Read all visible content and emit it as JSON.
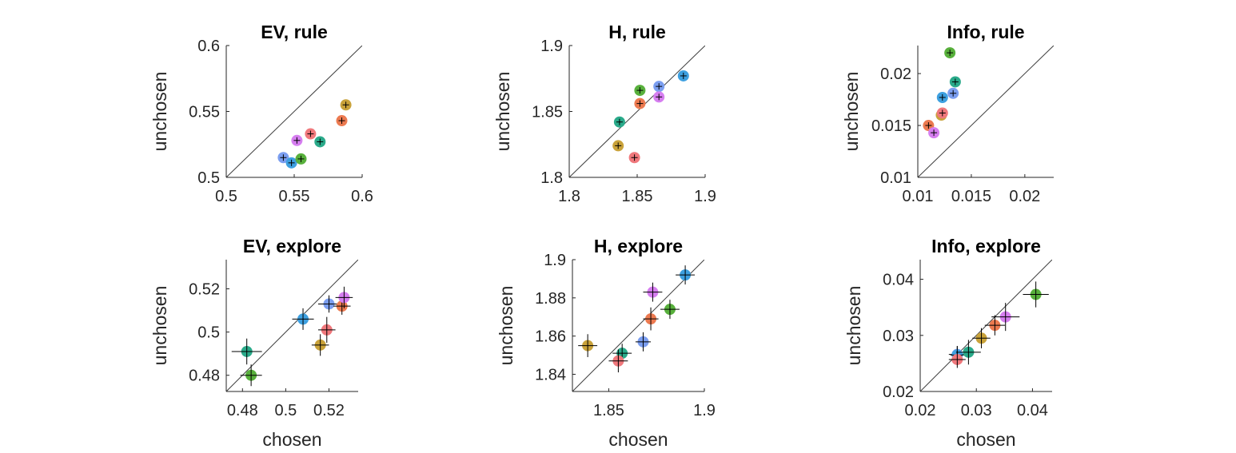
{
  "colors": [
    "#7b9ef0",
    "#3ea0e0",
    "#58b03c",
    "#2aaa8a",
    "#c9a23a",
    "#ec7a50",
    "#f0787c",
    "#d67ef0"
  ],
  "chart_data": [
    {
      "type": "scatter",
      "title": "EV, rule",
      "xlabel": "",
      "ylabel": "unchosen",
      "xlim": [
        0.5,
        0.6
      ],
      "ylim": [
        0.5,
        0.6
      ],
      "xticks": [
        0.5,
        0.55,
        0.6
      ],
      "yticks": [
        0.5,
        0.55,
        0.6
      ],
      "xticklabels": [
        "0.5",
        "0.55",
        "0.6"
      ],
      "yticklabels": [
        "0.5",
        "0.55",
        "0.6"
      ],
      "points": [
        {
          "x": 0.542,
          "y": 0.515,
          "xerr": 0.001,
          "yerr": 0.001,
          "color": 0
        },
        {
          "x": 0.548,
          "y": 0.511,
          "xerr": 0.001,
          "yerr": 0.001,
          "color": 1
        },
        {
          "x": 0.555,
          "y": 0.514,
          "xerr": 0.001,
          "yerr": 0.001,
          "color": 2
        },
        {
          "x": 0.569,
          "y": 0.527,
          "xerr": 0.001,
          "yerr": 0.001,
          "color": 3
        },
        {
          "x": 0.588,
          "y": 0.555,
          "xerr": 0.001,
          "yerr": 0.001,
          "color": 4
        },
        {
          "x": 0.585,
          "y": 0.543,
          "xerr": 0.001,
          "yerr": 0.001,
          "color": 5
        },
        {
          "x": 0.562,
          "y": 0.533,
          "xerr": 0.001,
          "yerr": 0.001,
          "color": 6
        },
        {
          "x": 0.552,
          "y": 0.528,
          "xerr": 0.001,
          "yerr": 0.001,
          "color": 7
        }
      ]
    },
    {
      "type": "scatter",
      "title": "H, rule",
      "xlabel": "",
      "ylabel": "unchosen",
      "xlim": [
        1.8,
        1.9
      ],
      "ylim": [
        1.8,
        1.9
      ],
      "xticks": [
        1.8,
        1.85,
        1.9
      ],
      "yticks": [
        1.8,
        1.85,
        1.9
      ],
      "xticklabels": [
        "1.8",
        "1.85",
        "1.9"
      ],
      "yticklabels": [
        "1.8",
        "1.85",
        "1.9"
      ],
      "points": [
        {
          "x": 1.866,
          "y": 1.869,
          "xerr": 0.001,
          "yerr": 0.001,
          "color": 0
        },
        {
          "x": 1.884,
          "y": 1.877,
          "xerr": 0.001,
          "yerr": 0.001,
          "color": 1
        },
        {
          "x": 1.852,
          "y": 1.866,
          "xerr": 0.001,
          "yerr": 0.001,
          "color": 2
        },
        {
          "x": 1.837,
          "y": 1.842,
          "xerr": 0.001,
          "yerr": 0.001,
          "color": 3
        },
        {
          "x": 1.836,
          "y": 1.824,
          "xerr": 0.001,
          "yerr": 0.001,
          "color": 4
        },
        {
          "x": 1.852,
          "y": 1.856,
          "xerr": 0.001,
          "yerr": 0.001,
          "color": 5
        },
        {
          "x": 1.848,
          "y": 1.815,
          "xerr": 0.001,
          "yerr": 0.001,
          "color": 6
        },
        {
          "x": 1.866,
          "y": 1.861,
          "xerr": 0.001,
          "yerr": 0.001,
          "color": 7
        }
      ]
    },
    {
      "type": "scatter",
      "title": "Info, rule",
      "xlabel": "",
      "ylabel": "unchosen",
      "xlim": [
        0.01,
        0.0227
      ],
      "ylim": [
        0.01,
        0.0227
      ],
      "xticks": [
        0.01,
        0.015,
        0.02
      ],
      "yticks": [
        0.01,
        0.015,
        0.02
      ],
      "xticklabels": [
        "0.01",
        "0.015",
        "0.02"
      ],
      "yticklabels": [
        "0.01",
        "0.015",
        "0.02"
      ],
      "points": [
        {
          "x": 0.0133,
          "y": 0.0181,
          "xerr": 0.0001,
          "yerr": 0.0002,
          "color": 0
        },
        {
          "x": 0.0123,
          "y": 0.0177,
          "xerr": 0.0001,
          "yerr": 0.0002,
          "color": 1
        },
        {
          "x": 0.013,
          "y": 0.022,
          "xerr": 0.0001,
          "yerr": 0.0002,
          "color": 2
        },
        {
          "x": 0.0135,
          "y": 0.0192,
          "xerr": 0.0001,
          "yerr": 0.0002,
          "color": 3
        },
        {
          "x": 0.0122,
          "y": 0.016,
          "xerr": 0.0001,
          "yerr": 0.0002,
          "color": 4
        },
        {
          "x": 0.011,
          "y": 0.015,
          "xerr": 0.0001,
          "yerr": 0.0002,
          "color": 5
        },
        {
          "x": 0.0123,
          "y": 0.0162,
          "xerr": 0.0001,
          "yerr": 0.0002,
          "color": 6
        },
        {
          "x": 0.0115,
          "y": 0.0143,
          "xerr": 0.0001,
          "yerr": 0.0002,
          "color": 7
        }
      ]
    },
    {
      "type": "scatter",
      "title": "EV, explore",
      "xlabel": "chosen",
      "ylabel": "unchosen",
      "xlim": [
        0.4725,
        0.5335
      ],
      "ylim": [
        0.4725,
        0.5335
      ],
      "xticks": [
        0.48,
        0.5,
        0.52
      ],
      "yticks": [
        0.48,
        0.5,
        0.52
      ],
      "xticklabels": [
        "0.48",
        "0.5",
        "0.52"
      ],
      "yticklabels": [
        "0.48",
        "0.5",
        "0.52"
      ],
      "points": [
        {
          "x": 0.52,
          "y": 0.513,
          "xerr": 0.005,
          "yerr": 0.004,
          "color": 0
        },
        {
          "x": 0.508,
          "y": 0.506,
          "xerr": 0.005,
          "yerr": 0.005,
          "color": 1
        },
        {
          "x": 0.484,
          "y": 0.48,
          "xerr": 0.005,
          "yerr": 0.005,
          "color": 2
        },
        {
          "x": 0.482,
          "y": 0.491,
          "xerr": 0.007,
          "yerr": 0.006,
          "color": 3
        },
        {
          "x": 0.516,
          "y": 0.494,
          "xerr": 0.004,
          "yerr": 0.005,
          "color": 4
        },
        {
          "x": 0.526,
          "y": 0.512,
          "xerr": 0.004,
          "yerr": 0.004,
          "color": 5
        },
        {
          "x": 0.519,
          "y": 0.501,
          "xerr": 0.004,
          "yerr": 0.006,
          "color": 6
        },
        {
          "x": 0.527,
          "y": 0.516,
          "xerr": 0.004,
          "yerr": 0.005,
          "color": 7
        }
      ]
    },
    {
      "type": "scatter",
      "title": "H, explore",
      "xlabel": "chosen",
      "ylabel": "unchosen",
      "xlim": [
        1.831,
        1.9
      ],
      "ylim": [
        1.831,
        1.9
      ],
      "xticks": [
        1.85,
        1.9
      ],
      "yticks": [
        1.84,
        1.86,
        1.88,
        1.9
      ],
      "xticklabels": [
        "1.85",
        "1.9"
      ],
      "yticklabels": [
        "1.84",
        "1.86",
        "1.88",
        "1.9"
      ],
      "points": [
        {
          "x": 1.868,
          "y": 1.857,
          "xerr": 0.004,
          "yerr": 0.005,
          "color": 0
        },
        {
          "x": 1.89,
          "y": 1.892,
          "xerr": 0.005,
          "yerr": 0.005,
          "color": 1
        },
        {
          "x": 1.882,
          "y": 1.874,
          "xerr": 0.005,
          "yerr": 0.005,
          "color": 2
        },
        {
          "x": 1.857,
          "y": 1.851,
          "xerr": 0.005,
          "yerr": 0.005,
          "color": 3
        },
        {
          "x": 1.839,
          "y": 1.855,
          "xerr": 0.005,
          "yerr": 0.006,
          "color": 4
        },
        {
          "x": 1.872,
          "y": 1.869,
          "xerr": 0.004,
          "yerr": 0.006,
          "color": 5
        },
        {
          "x": 1.855,
          "y": 1.847,
          "xerr": 0.005,
          "yerr": 0.006,
          "color": 6
        },
        {
          "x": 1.873,
          "y": 1.883,
          "xerr": 0.005,
          "yerr": 0.005,
          "color": 7
        }
      ]
    },
    {
      "type": "scatter",
      "title": "Info, explore",
      "xlabel": "chosen",
      "ylabel": "unchosen",
      "xlim": [
        0.02,
        0.0435
      ],
      "ylim": [
        0.02,
        0.0435
      ],
      "xticks": [
        0.02,
        0.03,
        0.04
      ],
      "yticks": [
        0.02,
        0.03,
        0.04
      ],
      "xticklabels": [
        "0.02",
        "0.03",
        "0.04"
      ],
      "yticklabels": [
        "0.02",
        "0.03",
        "0.04"
      ],
      "points": [
        {
          "x": 0.0266,
          "y": 0.0266,
          "xerr": 0.0015,
          "yerr": 0.0015,
          "color": 0
        },
        {
          "x": 0.0266,
          "y": 0.0265,
          "xerr": 0.0012,
          "yerr": 0.0016,
          "color": 1
        },
        {
          "x": 0.0406,
          "y": 0.0373,
          "xerr": 0.0023,
          "yerr": 0.0023,
          "color": 2
        },
        {
          "x": 0.0286,
          "y": 0.027,
          "xerr": 0.0022,
          "yerr": 0.0022,
          "color": 3
        },
        {
          "x": 0.0309,
          "y": 0.0295,
          "xerr": 0.0016,
          "yerr": 0.0018,
          "color": 4
        },
        {
          "x": 0.0333,
          "y": 0.0318,
          "xerr": 0.0018,
          "yerr": 0.0018,
          "color": 5
        },
        {
          "x": 0.0266,
          "y": 0.0257,
          "xerr": 0.0015,
          "yerr": 0.0015,
          "color": 6
        },
        {
          "x": 0.0352,
          "y": 0.0333,
          "xerr": 0.0025,
          "yerr": 0.0025,
          "color": 7
        }
      ]
    }
  ]
}
